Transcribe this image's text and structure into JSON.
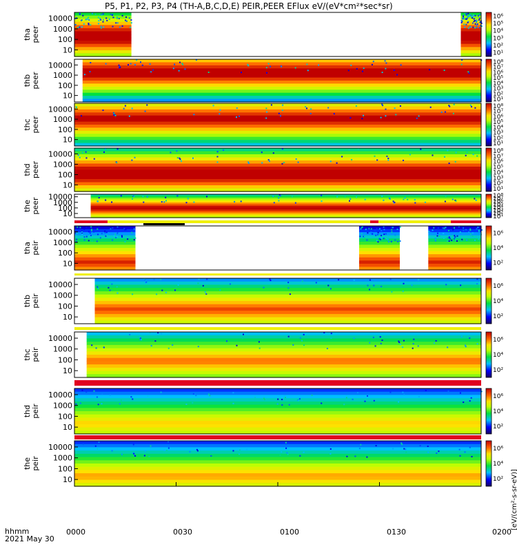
{
  "chart_data": {
    "type": "heatmap",
    "title": "P5, P1, P2, P3, P4 (TH-A,B,C,D,E) PEIR,PEER EFlux eV/(eV*cm²*sec*sr)",
    "x_ticks": [
      "0000",
      "0030",
      "0100",
      "0130",
      "0200"
    ],
    "x_corner_labels": [
      "hhmm",
      "2021 May 30"
    ],
    "colorbar_unit_label": "[eV/(cm²-s-sr-eV)]",
    "panels": [
      {
        "probe": "tha",
        "species": "peer",
        "ylabel": [
          "tha",
          "peer"
        ],
        "yticks": [
          "10",
          "100",
          "1000",
          "10000"
        ],
        "cbar_ticks": [
          "10⁶",
          "10⁵",
          "10⁴",
          "10³",
          "10²",
          "10¹"
        ],
        "coverage": [
          [
            0.0,
            0.14
          ],
          [
            0.95,
            1.0
          ]
        ],
        "band_center": 0.55,
        "intensity": 0.9
      },
      {
        "probe": "thb",
        "species": "peer",
        "ylabel": [
          "thb",
          "peer"
        ],
        "yticks": [
          "10",
          "100",
          "1000",
          "10000"
        ],
        "cbar_ticks": [
          "10⁸",
          "10⁷",
          "10⁶",
          "10⁵",
          "10⁴",
          "10³",
          "10²",
          "10¹"
        ],
        "coverage": [
          [
            0.02,
            1.0
          ]
        ],
        "band_center": 0.3,
        "intensity": 0.85
      },
      {
        "probe": "thc",
        "species": "peer",
        "ylabel": [
          "thc",
          "peer"
        ],
        "yticks": [
          "10",
          "100",
          "1000",
          "10000"
        ],
        "cbar_ticks": [
          "10⁸",
          "10⁷",
          "10⁶",
          "10⁵",
          "10⁴",
          "10³",
          "10²",
          "10¹"
        ],
        "coverage": [
          [
            0.0,
            1.0
          ]
        ],
        "band_center": 0.35,
        "intensity": 0.8
      },
      {
        "probe": "thd",
        "species": "peer",
        "ylabel": [
          "thd",
          "peer"
        ],
        "yticks": [
          "10",
          "100",
          "1000",
          "10000"
        ],
        "cbar_ticks": [
          "10⁸",
          "10⁷",
          "10⁶",
          "10⁵",
          "10⁴",
          "10³",
          "10²",
          "10¹"
        ],
        "coverage": [
          [
            0.0,
            1.0
          ]
        ],
        "band_center": 0.6,
        "intensity": 0.9
      },
      {
        "probe": "the",
        "species": "peer",
        "ylabel": [
          "the",
          "peer"
        ],
        "yticks": [
          "10",
          "100",
          "1000",
          "10000"
        ],
        "cbar_ticks": [
          "10⁸",
          "10⁷",
          "10⁶",
          "10⁵",
          "10⁴",
          "10³",
          "10²",
          "10¹"
        ],
        "coverage": [
          [
            0.04,
            1.0
          ]
        ],
        "band_center": 0.6,
        "intensity": 0.8
      },
      {
        "probe": "tha",
        "species": "peir",
        "ylabel": [
          "tha",
          "peir"
        ],
        "yticks": [
          "10",
          "100",
          "1000",
          "10000"
        ],
        "cbar_ticks": [
          "10⁶",
          "10⁴",
          "10²"
        ],
        "coverage": [
          [
            0.0,
            0.15
          ],
          [
            0.7,
            0.8
          ],
          [
            0.87,
            1.0
          ]
        ],
        "band_center": 0.85,
        "intensity": 0.7
      },
      {
        "probe": "thb",
        "species": "peir",
        "ylabel": [
          "thb",
          "peir"
        ],
        "yticks": [
          "10",
          "100",
          "1000",
          "10000"
        ],
        "cbar_ticks": [
          "10⁶",
          "10⁴",
          "10²"
        ],
        "coverage": [
          [
            0.05,
            1.0
          ]
        ],
        "band_center": 0.7,
        "intensity": 0.65
      },
      {
        "probe": "thc",
        "species": "peir",
        "ylabel": [
          "thc",
          "peir"
        ],
        "yticks": [
          "10",
          "100",
          "1000",
          "10000"
        ],
        "cbar_ticks": [
          "10⁶",
          "10⁴",
          "10²"
        ],
        "coverage": [
          [
            0.03,
            1.0
          ]
        ],
        "band_center": 0.65,
        "intensity": 0.6
      },
      {
        "probe": "thd",
        "species": "peir",
        "ylabel": [
          "thd",
          "peir"
        ],
        "yticks": [
          "10",
          "100",
          "1000",
          "10000"
        ],
        "cbar_ticks": [
          "10⁶",
          "10⁴",
          "10²"
        ],
        "coverage": [
          [
            0.0,
            1.0
          ]
        ],
        "band_center": 0.8,
        "intensity": 0.5
      },
      {
        "probe": "the",
        "species": "peir",
        "ylabel": [
          "the",
          "peir"
        ],
        "yticks": [
          "10",
          "100",
          "1000",
          "10000"
        ],
        "cbar_ticks": [
          "10⁶",
          "10⁴",
          "10²"
        ],
        "coverage": [
          [
            0.0,
            1.0
          ]
        ],
        "band_center": 0.8,
        "intensity": 0.55
      }
    ],
    "colors": {
      "low": "#1010c0",
      "mid": "#00d000",
      "high": "#e00000",
      "bar_red": "#e00020",
      "bar_yellow": "#f0f000",
      "bar_black": "#000000"
    }
  }
}
